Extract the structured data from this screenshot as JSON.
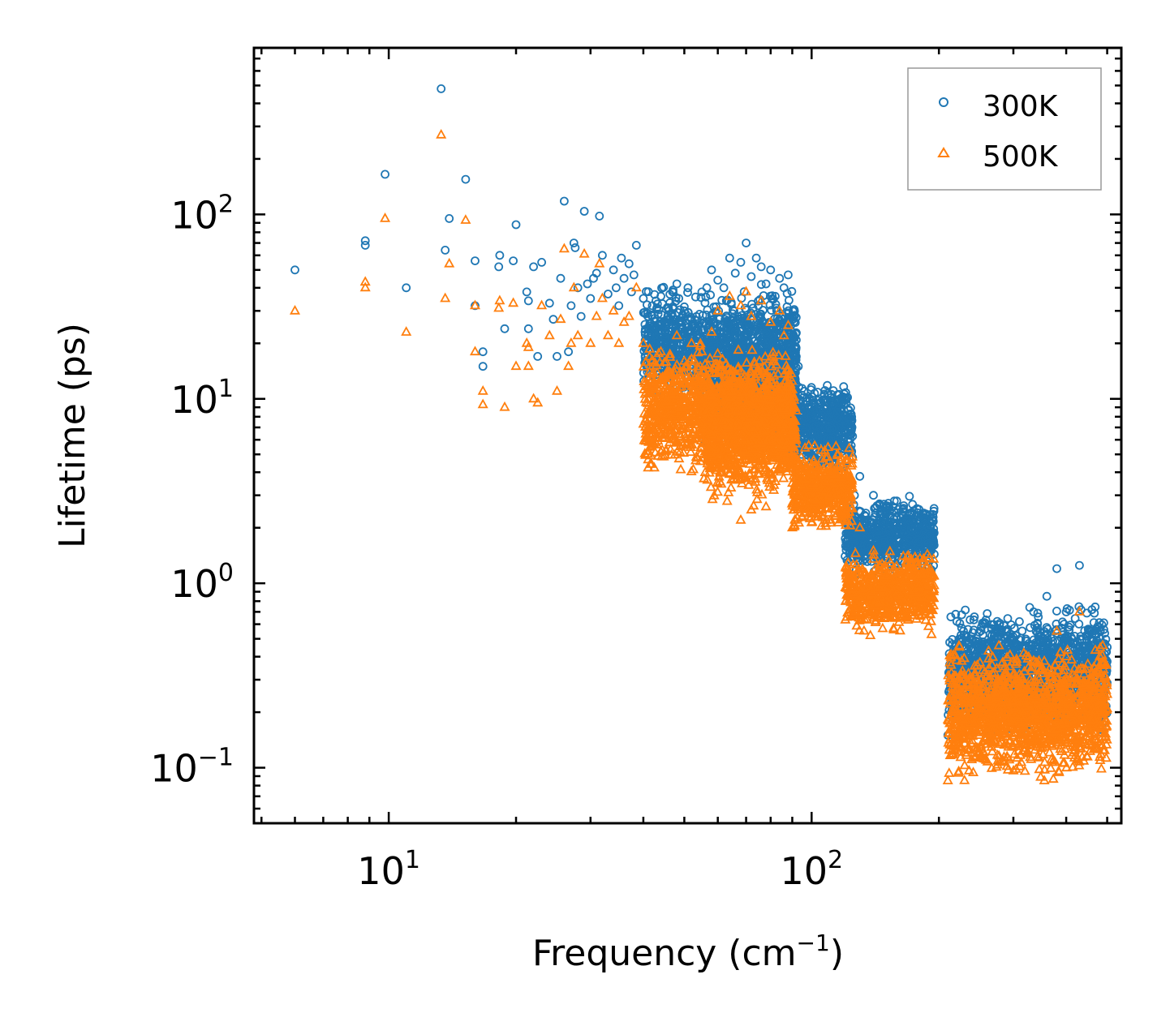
{
  "chart_data": {
    "type": "scatter",
    "xscale": "log",
    "yscale": "log",
    "xlabel": "Frequency (cm",
    "xlabel_sup": "−1",
    "xlabel_close": ")",
    "ylabel": "Lifetime (ps)",
    "xlim": [
      4.8,
      540
    ],
    "ylim": [
      0.05,
      800
    ],
    "xticks": [
      {
        "base": "10",
        "exp": "1",
        "value": 10
      },
      {
        "base": "10",
        "exp": "2",
        "value": 100
      }
    ],
    "yticks": [
      {
        "base": "10",
        "exp": "−1",
        "value": 0.1
      },
      {
        "base": "10",
        "exp": "0",
        "value": 1
      },
      {
        "base": "10",
        "exp": "1",
        "value": 10
      },
      {
        "base": "10",
        "exp": "2",
        "value": 100
      }
    ],
    "legend_position": "top-right",
    "series": [
      {
        "name": "300K",
        "label": "300K",
        "marker": "circle",
        "color": "#1f77b4",
        "points": [
          [
            6.0,
            50
          ],
          [
            8.8,
            72
          ],
          [
            8.8,
            68
          ],
          [
            9.8,
            165
          ],
          [
            11.0,
            40
          ],
          [
            13.3,
            480
          ],
          [
            13.6,
            64
          ],
          [
            13.9,
            95
          ],
          [
            15.2,
            155
          ],
          [
            16.0,
            56
          ],
          [
            16.0,
            32
          ],
          [
            16.7,
            18
          ],
          [
            16.7,
            15
          ],
          [
            18.2,
            52
          ],
          [
            18.3,
            60
          ],
          [
            18.8,
            24
          ],
          [
            19.7,
            56
          ],
          [
            20.0,
            88
          ],
          [
            21.2,
            38
          ],
          [
            21.4,
            34
          ],
          [
            21.4,
            24
          ],
          [
            22.0,
            52
          ],
          [
            22.5,
            17
          ],
          [
            23.0,
            55
          ],
          [
            24.0,
            33
          ],
          [
            24.5,
            27
          ],
          [
            25.0,
            17
          ],
          [
            25.5,
            45
          ],
          [
            26.0,
            118
          ],
          [
            26.6,
            18
          ],
          [
            27.0,
            32
          ],
          [
            27.4,
            70
          ],
          [
            27.6,
            66
          ],
          [
            28.0,
            40
          ],
          [
            28.5,
            28
          ],
          [
            29.0,
            104
          ],
          [
            29.5,
            42
          ],
          [
            30.0,
            35
          ],
          [
            30.5,
            45
          ],
          [
            31.0,
            48
          ],
          [
            31.5,
            98
          ],
          [
            32.0,
            60
          ],
          [
            33.0,
            37
          ],
          [
            34.0,
            50
          ],
          [
            34.5,
            40
          ],
          [
            35.0,
            32
          ],
          [
            35.5,
            58
          ],
          [
            36.0,
            45
          ],
          [
            37.0,
            54
          ],
          [
            37.5,
            38
          ],
          [
            38.0,
            47
          ],
          [
            38.5,
            68
          ],
          [
            40.0,
            35
          ],
          [
            41.0,
            28
          ],
          [
            42.0,
            32
          ],
          [
            44.0,
            36
          ],
          [
            45.0,
            25
          ],
          [
            47.0,
            31
          ],
          [
            48.0,
            42
          ],
          [
            50.0,
            30
          ],
          [
            51.0,
            40
          ],
          [
            52.0,
            27
          ],
          [
            55.0,
            38
          ],
          [
            58.0,
            50
          ],
          [
            60.0,
            44
          ],
          [
            62.0,
            40
          ],
          [
            64.0,
            58
          ],
          [
            66.0,
            48
          ],
          [
            68.0,
            55
          ],
          [
            70.0,
            70
          ],
          [
            72.0,
            46
          ],
          [
            74.0,
            58
          ],
          [
            76.0,
            52
          ],
          [
            78.0,
            42
          ],
          [
            80.0,
            50
          ],
          [
            82.0,
            36
          ],
          [
            84.0,
            45
          ],
          [
            86.0,
            40
          ],
          [
            88.0,
            47
          ],
          [
            90.0,
            28
          ],
          [
            93.0,
            15
          ],
          [
            96.0,
            11
          ],
          [
            100.0,
            8.5
          ],
          [
            105.0,
            7.0
          ],
          [
            110.0,
            8.0
          ],
          [
            115.0,
            10.5
          ],
          [
            118.0,
            9.5
          ],
          [
            120.0,
            6.5
          ],
          [
            125.0,
            4.8
          ],
          [
            130.0,
            3.8
          ],
          [
            140.0,
            3.0
          ],
          [
            150.0,
            2.4
          ],
          [
            160.0,
            2.0
          ],
          [
            170.0,
            1.7
          ],
          [
            180.0,
            1.5
          ],
          [
            190.0,
            1.8
          ],
          [
            210.0,
            0.15
          ],
          [
            215.0,
            0.3
          ],
          [
            225.0,
            0.35
          ],
          [
            240.0,
            0.4
          ],
          [
            255.0,
            0.6
          ],
          [
            270.0,
            0.5
          ],
          [
            290.0,
            0.55
          ],
          [
            310.0,
            0.62
          ],
          [
            335.0,
            0.7
          ],
          [
            360.0,
            0.85
          ],
          [
            380.0,
            1.2
          ],
          [
            400.0,
            0.7
          ],
          [
            430.0,
            1.25
          ],
          [
            460.0,
            0.55
          ],
          [
            500.0,
            0.45
          ]
        ],
        "bands": [
          {
            "x": [
              40,
              92
            ],
            "y": [
              9,
              45
            ],
            "n": 1100
          },
          {
            "x": [
              56,
              92
            ],
            "y": [
              5,
              26
            ],
            "n": 700
          },
          {
            "x": [
              90,
              125
            ],
            "y": [
              3.5,
              14
            ],
            "n": 500
          },
          {
            "x": [
              120,
              195
            ],
            "y": [
              1.0,
              3.2
            ],
            "n": 650
          },
          {
            "x": [
              210,
              500
            ],
            "y": [
              0.14,
              0.85
            ],
            "n": 1500
          }
        ]
      },
      {
        "name": "500K",
        "label": "500K",
        "marker": "triangle",
        "color": "#ff7f0e",
        "points": [
          [
            6.0,
            30
          ],
          [
            8.8,
            43
          ],
          [
            8.8,
            40
          ],
          [
            9.8,
            95
          ],
          [
            11.0,
            23
          ],
          [
            13.3,
            270
          ],
          [
            13.6,
            35
          ],
          [
            13.9,
            54
          ],
          [
            15.2,
            93
          ],
          [
            16.0,
            32
          ],
          [
            16.0,
            18
          ],
          [
            16.7,
            11
          ],
          [
            16.7,
            9.3
          ],
          [
            18.2,
            31
          ],
          [
            18.3,
            34
          ],
          [
            18.8,
            9.0
          ],
          [
            19.7,
            33
          ],
          [
            20.0,
            15
          ],
          [
            21.2,
            20
          ],
          [
            21.4,
            19
          ],
          [
            21.4,
            15
          ],
          [
            22.0,
            10
          ],
          [
            22.5,
            9.5
          ],
          [
            23.0,
            32
          ],
          [
            24.0,
            22
          ],
          [
            25.0,
            11
          ],
          [
            25.5,
            27
          ],
          [
            26.0,
            65
          ],
          [
            26.6,
            15
          ],
          [
            27.0,
            20
          ],
          [
            27.4,
            40
          ],
          [
            28.0,
            22
          ],
          [
            29.0,
            61
          ],
          [
            30.0,
            20
          ],
          [
            31.0,
            28
          ],
          [
            31.5,
            54
          ],
          [
            32.0,
            35
          ],
          [
            33.0,
            22
          ],
          [
            34.0,
            30
          ],
          [
            35.0,
            20
          ],
          [
            36.0,
            26
          ],
          [
            37.0,
            28
          ],
          [
            38.5,
            40
          ],
          [
            40.0,
            20
          ],
          [
            42.0,
            16
          ],
          [
            44.0,
            18
          ],
          [
            46.0,
            14
          ],
          [
            48.0,
            22
          ],
          [
            50.0,
            16
          ],
          [
            52.0,
            20
          ],
          [
            55.0,
            18
          ],
          [
            58.0,
            23
          ],
          [
            60.0,
            30
          ],
          [
            64.0,
            36
          ],
          [
            68.0,
            32
          ],
          [
            70.0,
            38
          ],
          [
            72.0,
            28
          ],
          [
            76.0,
            34
          ],
          [
            80.0,
            26
          ],
          [
            84.0,
            30
          ],
          [
            86.0,
            22
          ],
          [
            88.0,
            25
          ],
          [
            68.0,
            2.2
          ],
          [
            72.0,
            2.5
          ],
          [
            78.0,
            2.6
          ],
          [
            90.0,
            2.0
          ],
          [
            100.0,
            4.0
          ],
          [
            110.0,
            3.0
          ],
          [
            120.0,
            2.5
          ],
          [
            130.0,
            2.0
          ],
          [
            140.0,
            1.5
          ],
          [
            150.0,
            1.1
          ],
          [
            160.0,
            0.9
          ],
          [
            170.0,
            0.75
          ],
          [
            180.0,
            0.7
          ],
          [
            190.0,
            0.68
          ],
          [
            210.0,
            0.085
          ],
          [
            225.0,
            0.13
          ],
          [
            240.0,
            0.18
          ],
          [
            255.0,
            0.22
          ],
          [
            270.0,
            0.3
          ],
          [
            290.0,
            0.28
          ],
          [
            310.0,
            0.32
          ],
          [
            335.0,
            0.38
          ],
          [
            355.0,
            0.085
          ],
          [
            380.0,
            0.55
          ],
          [
            400.0,
            0.4
          ],
          [
            430.0,
            0.7
          ],
          [
            460.0,
            0.3
          ],
          [
            500.0,
            0.25
          ]
        ],
        "bands": [
          {
            "x": [
              40,
              90
            ],
            "y": [
              3.5,
              22
            ],
            "n": 1200
          },
          {
            "x": [
              56,
              92
            ],
            "y": [
              2.5,
              15
            ],
            "n": 800
          },
          {
            "x": [
              90,
              125
            ],
            "y": [
              1.8,
              6
            ],
            "n": 500
          },
          {
            "x": [
              120,
              195
            ],
            "y": [
              0.5,
              1.6
            ],
            "n": 650
          },
          {
            "x": [
              210,
              500
            ],
            "y": [
              0.08,
              0.5
            ],
            "n": 1500
          }
        ]
      }
    ]
  }
}
